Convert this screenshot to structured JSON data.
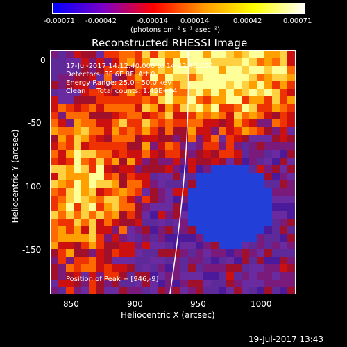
{
  "colorbar": {
    "ticks": [
      "-0.00071",
      "-0.00042",
      "-0.00014",
      "0.00014",
      "0.00042",
      "0.00071"
    ],
    "unit": "(photons cm⁻² s⁻¹ asec⁻²)",
    "colors": [
      "#0000ff",
      "#7b00c8",
      "#ff0000",
      "#ff9a00",
      "#ffff00",
      "#ffffff"
    ]
  },
  "title": "Reconstructed RHESSI Image",
  "info": {
    "time": "17-Jul-2017 14:12:40.000 to 14:42:40.000",
    "detectors": "Detectors: 3F 6F 8F, Att 0",
    "energy": "Energy Range: 25.0 - 50.0 keV",
    "clean": "Clean     Total counts: 1.45E+04",
    "peak": "Position of Peak = [946,-9]"
  },
  "axes": {
    "xlabel": "Heliocentric X (arcsec)",
    "ylabel": "Heliocentric Y (arcsec)",
    "xticks": [
      "850",
      "900",
      "950",
      "1000"
    ],
    "yticks": [
      "0",
      "-50",
      "-100",
      "-150"
    ]
  },
  "footer": {
    "timestamp": "19-Jul-2017 13:43"
  }
}
